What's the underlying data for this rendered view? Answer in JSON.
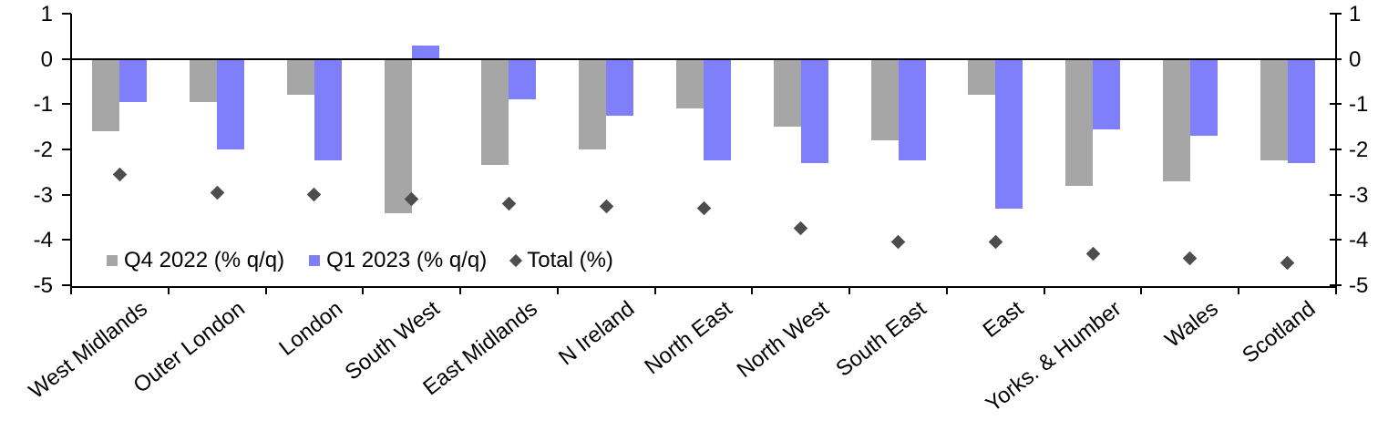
{
  "chart_data": {
    "type": "bar",
    "title": "",
    "categories": [
      "West Midlands",
      "Outer London",
      "London",
      "South West",
      "East Midlands",
      "N Ireland",
      "North East",
      "North West",
      "South East",
      "East",
      "Yorks. & Humber",
      "Wales",
      "Scotland"
    ],
    "series": [
      {
        "name": "Q4 2022 (% q/q)",
        "type": "bar",
        "color": "#a6a6a6",
        "values": [
          -1.6,
          -0.95,
          -0.8,
          -3.4,
          -2.35,
          -2.0,
          -1.1,
          -1.5,
          -1.8,
          -0.8,
          -2.8,
          -2.7,
          -2.25
        ]
      },
      {
        "name": "Q1 2023 (% q/q)",
        "type": "bar",
        "color": "#7f7ffb",
        "values": [
          -0.95,
          -2.0,
          -2.25,
          0.3,
          -0.9,
          -1.25,
          -2.25,
          -2.3,
          -2.25,
          -3.3,
          -1.55,
          -1.7,
          -2.3
        ]
      },
      {
        "name": "Total (%)",
        "type": "scatter",
        "marker": "diamond",
        "color": "#4d4d4d",
        "values": [
          -2.55,
          -2.95,
          -3.0,
          -3.1,
          -3.2,
          -3.25,
          -3.3,
          -3.75,
          -4.05,
          -4.05,
          -4.3,
          -4.4,
          -4.5
        ]
      }
    ],
    "y_axis": {
      "min": -5,
      "max": 1,
      "step": 1,
      "tick_labels": [
        "1",
        "0",
        "-1",
        "-2",
        "-3",
        "-4",
        "-5"
      ],
      "mirrored_right_axis": true,
      "zero_line": true,
      "gridlines": false
    },
    "legend_position": "inside-bottom-left",
    "axis_color": "#000000"
  }
}
